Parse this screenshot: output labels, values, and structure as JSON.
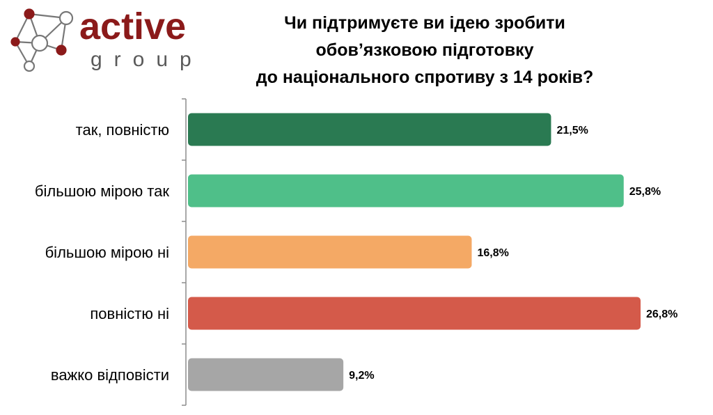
{
  "brand": {
    "name": "active",
    "sub": "group",
    "color_dark": "#8b1a1a",
    "color_gray": "#5a5a5a"
  },
  "title_lines": [
    "Чи підтримуєте ви ідею зробити",
    "обов’язковою підготовку",
    "до національного спротиву з 14 років?"
  ],
  "chart_data": {
    "type": "bar",
    "orientation": "horizontal",
    "title": "Чи підтримуєте ви ідею зробити обов’язковою підготовку до національного спротиву з 14 років?",
    "categories": [
      "так, повністю",
      "більшою мірою так",
      "більшою мірою ні",
      "повністю ні",
      "важко відповісти"
    ],
    "values": [
      21.5,
      25.8,
      16.8,
      26.8,
      9.2
    ],
    "labels": [
      "21,5%",
      "25,8%",
      "16,8%",
      "26,8%",
      "9,2%"
    ],
    "colors": [
      "#2a7a52",
      "#4fbf89",
      "#f4a965",
      "#d45a4a",
      "#a6a6a6"
    ],
    "unit": "%",
    "xlim": [
      0,
      26.8
    ],
    "grid": false,
    "legend": "none"
  }
}
